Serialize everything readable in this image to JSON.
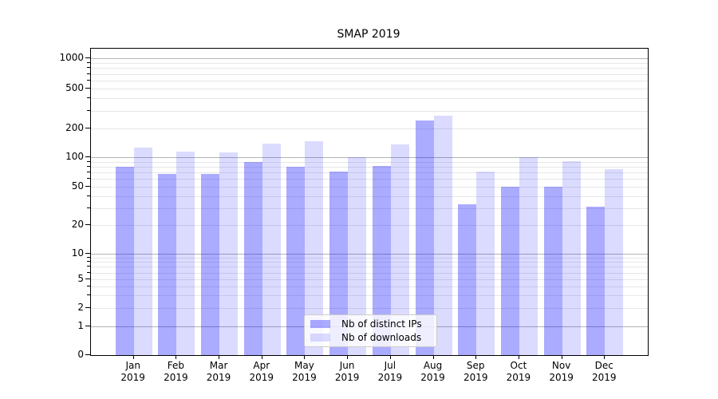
{
  "chart_data": {
    "type": "bar",
    "title": "SMAP 2019",
    "categories": [
      "Jan 2019",
      "Feb 2019",
      "Mar 2019",
      "Apr 2019",
      "May 2019",
      "Jun 2019",
      "Jul 2019",
      "Aug 2019",
      "Sep 2019",
      "Oct 2019",
      "Nov 2019",
      "Dec 2019"
    ],
    "series": [
      {
        "name": "Nb of distinct IPs",
        "color": "#0000FF54",
        "values": [
          80,
          68,
          68,
          90,
          80,
          71,
          81,
          240,
          33,
          50,
          50,
          31
        ]
      },
      {
        "name": "Nb of downloads",
        "color": "#0000FF24",
        "values": [
          125,
          115,
          112,
          140,
          148,
          100,
          135,
          270,
          72,
          100,
          91,
          76
        ]
      }
    ],
    "xlabel": "",
    "ylabel": "",
    "yscale": "log (linear below 1)",
    "y_ticks": [
      0,
      1,
      2,
      5,
      10,
      20,
      50,
      100,
      200,
      500,
      1000
    ],
    "ylim": [
      0,
      1250
    ],
    "grid": "horizontal major and minor gridlines",
    "legend_position": "lower center inside plot",
    "colors": {
      "major_grid": "#b4b4b4",
      "minor_grid": "#e7e7e7",
      "axis": "#000000",
      "text": "#000000",
      "background": "#ffffff"
    }
  }
}
